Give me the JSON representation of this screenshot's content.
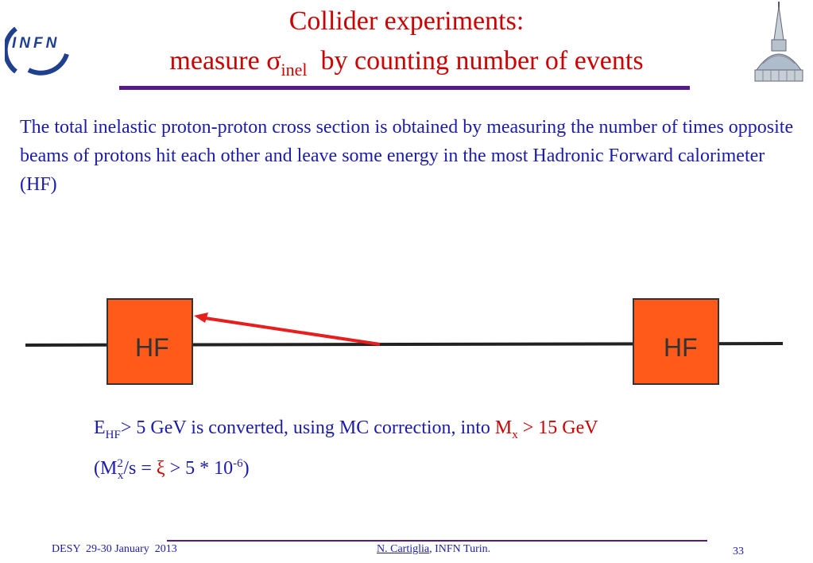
{
  "header": {
    "logo_text": "INFN",
    "title_line1": "Collider experiments:",
    "title_line2_prefix": "measure ",
    "sigma_symbol": "σ",
    "sigma_subscript": "inel",
    "title_line2_suffix": "  by counting number of events"
  },
  "intro_text": "The total inelastic proton-proton cross section is obtained by measuring the number of times opposite beams of protons hit each other and leave some energy in the most Hadronic Forward calorimeter (HF)",
  "diagram": {
    "left_box_label": "HF",
    "right_box_label": "HF"
  },
  "result": {
    "e_symbol": "E",
    "e_subscript": "HF",
    "line1_text": "> 5 GeV is converted, using MC correction, into ",
    "m_symbol": "M",
    "m_subscript": "x",
    "m_condition": " > 15 GeV",
    "line2_open": "(M",
    "line2_sup": "2",
    "line2_sub": "x",
    "line2_mid": "/s = ",
    "xi_symbol": "ξ",
    "line2_rest": " > 5 * 10",
    "exponent": "-6",
    "line2_close": ")"
  },
  "footer": {
    "event": "DESY  29-30 January  2013",
    "author_name": "N. Cartiglia",
    "author_affiliation": ", INFN Turin.",
    "page_number": "33"
  },
  "colors": {
    "title_red": "#cc0000",
    "text_blue": "#1c1caa",
    "rule_purple": "#5a1a86",
    "hf_orange": "#ff5a1a"
  }
}
